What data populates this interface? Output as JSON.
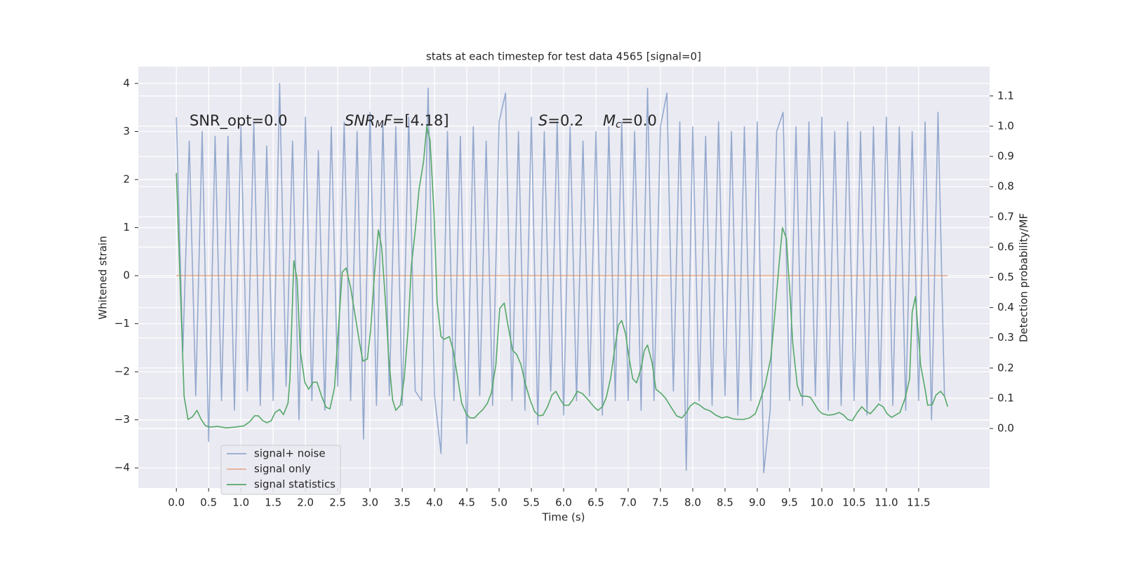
{
  "chart_data": {
    "type": "line",
    "title": "stats at each timestep for test data 4565 [signal=0]",
    "xlabel": "Time (s)",
    "ylabel": "Whitened strain",
    "y2label": "Detection probability/MF",
    "xlim": [
      -0.59,
      12.6
    ],
    "ylim": [
      -4.42,
      4.35
    ],
    "y2lim": [
      -0.197,
      1.197
    ],
    "xticks": [
      {
        "value": 0,
        "label": "0.0"
      },
      {
        "value": 0.5,
        "label": "0.5"
      },
      {
        "value": 1,
        "label": "1.0"
      },
      {
        "value": 1.5,
        "label": "1.5"
      },
      {
        "value": 2,
        "label": "2.0"
      },
      {
        "value": 2.5,
        "label": "2.5"
      },
      {
        "value": 3,
        "label": "3.0"
      },
      {
        "value": 3.5,
        "label": "3.5"
      },
      {
        "value": 4,
        "label": "4.0"
      },
      {
        "value": 4.5,
        "label": "4.5"
      },
      {
        "value": 5,
        "label": "5.0"
      },
      {
        "value": 5.5,
        "label": "5.5"
      },
      {
        "value": 6,
        "label": "6.0"
      },
      {
        "value": 6.5,
        "label": "6.5"
      },
      {
        "value": 7,
        "label": "7.0"
      },
      {
        "value": 7.5,
        "label": "7.5"
      },
      {
        "value": 8,
        "label": "8.0"
      },
      {
        "value": 8.5,
        "label": "8.5"
      },
      {
        "value": 9,
        "label": "9.0"
      },
      {
        "value": 9.5,
        "label": "9.5"
      },
      {
        "value": 10,
        "label": "10.0"
      },
      {
        "value": 10.5,
        "label": "10.5"
      },
      {
        "value": 11,
        "label": "11.0"
      },
      {
        "value": 11.5,
        "label": "11.5"
      }
    ],
    "yticks": [
      {
        "value": -4,
        "label": "−4"
      },
      {
        "value": -3,
        "label": "−3"
      },
      {
        "value": -2,
        "label": "−2"
      },
      {
        "value": -1,
        "label": "−1"
      },
      0,
      1,
      2,
      3,
      4
    ],
    "y2ticks": [
      {
        "value": 0,
        "label": "0.0"
      },
      {
        "value": 0.1,
        "label": "0.1"
      },
      {
        "value": 0.2,
        "label": "0.2"
      },
      {
        "value": 0.3,
        "label": "0.3"
      },
      {
        "value": 0.4,
        "label": "0.4"
      },
      {
        "value": 0.5,
        "label": "0.5"
      },
      {
        "value": 0.6,
        "label": "0.6"
      },
      {
        "value": 0.7,
        "label": "0.7"
      },
      {
        "value": 0.8,
        "label": "0.8"
      },
      {
        "value": 0.9,
        "label": "0.9"
      },
      {
        "value": 1,
        "label": "1.0"
      },
      {
        "value": 1.1,
        "label": "1.1"
      }
    ],
    "grid": true,
    "legend": "lower left",
    "annotations": [
      [
        {
          "text": "SNR_opt=0.0",
          "style": "normal"
        }
      ],
      [
        {
          "text": "SNR",
          "style": "italic"
        },
        {
          "text": "M",
          "style": "sub"
        },
        {
          "text": "F",
          "style": "italic"
        },
        {
          "text": "=[4.18]",
          "style": "normal"
        }
      ],
      [
        {
          "text": "S",
          "style": "italic"
        },
        {
          "text": "=0.2",
          "style": "normal"
        }
      ],
      [
        {
          "text": "M",
          "style": "italic"
        },
        {
          "text": "c",
          "style": "sub"
        },
        {
          "text": "=0.0",
          "style": "normal"
        }
      ]
    ],
    "series": [
      {
        "name": "signal+ noise",
        "color": "#4c72b0",
        "opacity": 0.55,
        "axis": "y",
        "x": [
          0.0,
          0.1,
          0.2,
          0.3,
          0.4,
          0.5,
          0.6,
          0.7,
          0.8,
          0.9,
          1.0,
          1.1,
          1.2,
          1.3,
          1.4,
          1.5,
          1.6,
          1.7,
          1.8,
          1.9,
          2.0,
          2.1,
          2.2,
          2.3,
          2.4,
          2.5,
          2.6,
          2.7,
          2.8,
          2.9,
          3.0,
          3.1,
          3.2,
          3.3,
          3.4,
          3.5,
          3.6,
          3.7,
          3.8,
          3.9,
          4.0,
          4.1,
          4.2,
          4.3,
          4.4,
          4.5,
          4.6,
          4.7,
          4.8,
          4.9,
          5.0,
          5.1,
          5.2,
          5.3,
          5.4,
          5.5,
          5.6,
          5.7,
          5.8,
          5.9,
          6.0,
          6.1,
          6.2,
          6.3,
          6.4,
          6.5,
          6.6,
          6.7,
          6.8,
          6.9,
          7.0,
          7.1,
          7.2,
          7.3,
          7.4,
          7.5,
          7.6,
          7.7,
          7.8,
          7.9,
          8.0,
          8.1,
          8.2,
          8.3,
          8.4,
          8.5,
          8.6,
          8.7,
          8.8,
          8.9,
          9.0,
          9.1,
          9.2,
          9.3,
          9.4,
          9.5,
          9.6,
          9.7,
          9.8,
          9.9,
          10.0,
          10.1,
          10.2,
          10.3,
          10.4,
          10.5,
          10.6,
          10.7,
          10.8,
          10.9,
          11.0,
          11.1,
          11.2,
          11.3,
          11.4,
          11.5,
          11.6,
          11.7,
          11.8,
          11.9
        ],
        "values": [
          3.3,
          -1.6,
          2.8,
          -2.5,
          3.0,
          -3.45,
          2.9,
          -2.6,
          2.9,
          -2.8,
          3.1,
          -2.4,
          3.2,
          -2.7,
          2.7,
          -2.6,
          4.0,
          -2.3,
          2.8,
          -3.0,
          3.3,
          -2.6,
          2.6,
          -2.8,
          3.1,
          -2.3,
          3.2,
          -2.6,
          3.0,
          -3.4,
          3.4,
          -2.7,
          3.2,
          -2.5,
          3.1,
          -2.7,
          3.3,
          -2.4,
          -2.6,
          3.9,
          -2.5,
          -3.7,
          3.0,
          -2.6,
          2.9,
          -3.5,
          3.1,
          -2.5,
          2.8,
          -2.7,
          3.2,
          3.8,
          -2.6,
          3.0,
          -2.8,
          3.3,
          -3.1,
          3.0,
          -2.4,
          3.2,
          -2.9,
          3.1,
          -2.6,
          2.8,
          -2.5,
          3.0,
          -2.9,
          3.1,
          -2.6,
          3.2,
          -2.6,
          3.0,
          -2.8,
          3.9,
          -2.6,
          3.1,
          3.8,
          -2.4,
          3.2,
          -4.05,
          3.1,
          -2.6,
          2.9,
          -2.7,
          3.2,
          -2.5,
          3.0,
          -2.9,
          3.1,
          -2.6,
          3.2,
          -4.1,
          -2.8,
          3.0,
          3.4,
          -2.6,
          3.1,
          -2.7,
          3.2,
          -2.5,
          3.3,
          -2.8,
          3.0,
          -2.7,
          3.2,
          -2.6,
          3.0,
          -2.9,
          3.1,
          -2.6,
          3.3,
          -2.7,
          3.1,
          -2.8,
          3.0,
          -2.6,
          3.2,
          -3.0,
          3.4,
          -2.5
        ]
      },
      {
        "name": "signal only",
        "color": "#dd8452",
        "opacity": 0.6,
        "axis": "y",
        "x": [
          0.0,
          11.95
        ],
        "values": [
          0,
          0
        ]
      },
      {
        "name": "signal statistics",
        "color": "#55a868",
        "opacity": 1,
        "axis": "y2",
        "x": [
          0.0,
          0.12,
          0.18,
          0.25,
          0.32,
          0.38,
          0.45,
          0.53,
          0.64,
          0.77,
          0.92,
          1.05,
          1.14,
          1.21,
          1.27,
          1.34,
          1.4,
          1.47,
          1.53,
          1.6,
          1.66,
          1.73,
          1.76,
          1.82,
          1.87,
          1.92,
          1.99,
          2.05,
          2.12,
          2.18,
          2.25,
          2.32,
          2.38,
          2.45,
          2.51,
          2.57,
          2.63,
          2.7,
          2.77,
          2.84,
          2.89,
          2.96,
          3.01,
          3.07,
          3.13,
          3.18,
          3.24,
          3.29,
          3.35,
          3.4,
          3.47,
          3.53,
          3.59,
          3.64,
          3.7,
          3.76,
          3.83,
          3.88,
          3.93,
          3.99,
          4.04,
          4.1,
          4.15,
          4.23,
          4.29,
          4.36,
          4.42,
          4.49,
          4.55,
          4.62,
          4.68,
          4.75,
          4.82,
          4.88,
          4.95,
          5.01,
          5.08,
          5.13,
          5.21,
          5.27,
          5.34,
          5.4,
          5.48,
          5.55,
          5.62,
          5.68,
          5.75,
          5.82,
          5.88,
          5.95,
          6.01,
          6.08,
          6.14,
          6.21,
          6.29,
          6.38,
          6.47,
          6.53,
          6.6,
          6.66,
          6.73,
          6.79,
          6.85,
          6.9,
          6.96,
          7.01,
          7.07,
          7.13,
          7.2,
          7.25,
          7.3,
          7.37,
          7.43,
          7.5,
          7.58,
          7.66,
          7.75,
          7.83,
          7.89,
          7.96,
          8.03,
          8.11,
          8.18,
          8.27,
          8.36,
          8.45,
          8.53,
          8.62,
          8.71,
          8.79,
          8.88,
          8.97,
          9.03,
          9.12,
          9.21,
          9.27,
          9.34,
          9.39,
          9.45,
          9.5,
          9.55,
          9.62,
          9.68,
          9.75,
          9.82,
          9.88,
          9.95,
          10.01,
          10.1,
          10.18,
          10.27,
          10.34,
          10.4,
          10.47,
          10.55,
          10.62,
          10.68,
          10.75,
          10.82,
          10.88,
          10.95,
          11.01,
          11.08,
          11.14,
          11.21,
          11.29,
          11.36,
          11.4,
          11.45,
          11.49,
          11.53,
          11.6,
          11.64,
          11.71,
          11.77,
          11.84,
          11.9,
          11.95
        ],
        "values": [
          0.845,
          0.107,
          0.03,
          0.039,
          0.06,
          0.032,
          0.009,
          0.005,
          0.007,
          0.002,
          0.005,
          0.009,
          0.023,
          0.042,
          0.042,
          0.026,
          0.019,
          0.026,
          0.053,
          0.063,
          0.046,
          0.084,
          0.165,
          0.555,
          0.494,
          0.258,
          0.153,
          0.13,
          0.153,
          0.153,
          0.107,
          0.07,
          0.065,
          0.135,
          0.327,
          0.517,
          0.531,
          0.466,
          0.374,
          0.281,
          0.223,
          0.23,
          0.327,
          0.513,
          0.657,
          0.601,
          0.42,
          0.234,
          0.095,
          0.06,
          0.077,
          0.165,
          0.327,
          0.536,
          0.652,
          0.791,
          0.884,
          1.0,
          0.954,
          0.722,
          0.42,
          0.304,
          0.295,
          0.304,
          0.258,
          0.165,
          0.084,
          0.049,
          0.035,
          0.035,
          0.049,
          0.063,
          0.084,
          0.118,
          0.211,
          0.397,
          0.415,
          0.35,
          0.258,
          0.246,
          0.211,
          0.153,
          0.095,
          0.056,
          0.042,
          0.044,
          0.072,
          0.111,
          0.123,
          0.095,
          0.077,
          0.077,
          0.095,
          0.123,
          0.116,
          0.095,
          0.072,
          0.06,
          0.072,
          0.102,
          0.169,
          0.262,
          0.343,
          0.357,
          0.313,
          0.239,
          0.165,
          0.151,
          0.2,
          0.258,
          0.276,
          0.218,
          0.13,
          0.118,
          0.1,
          0.072,
          0.042,
          0.035,
          0.049,
          0.074,
          0.086,
          0.077,
          0.065,
          0.058,
          0.044,
          0.035,
          0.039,
          0.032,
          0.03,
          0.03,
          0.035,
          0.049,
          0.084,
          0.142,
          0.234,
          0.374,
          0.548,
          0.664,
          0.629,
          0.466,
          0.281,
          0.142,
          0.107,
          0.107,
          0.104,
          0.084,
          0.06,
          0.049,
          0.044,
          0.046,
          0.053,
          0.044,
          0.03,
          0.026,
          0.053,
          0.072,
          0.058,
          0.049,
          0.065,
          0.081,
          0.072,
          0.049,
          0.037,
          0.044,
          0.053,
          0.1,
          0.165,
          0.385,
          0.436,
          0.327,
          0.211,
          0.13,
          0.077,
          0.079,
          0.111,
          0.123,
          0.107,
          0.072
        ]
      }
    ]
  }
}
